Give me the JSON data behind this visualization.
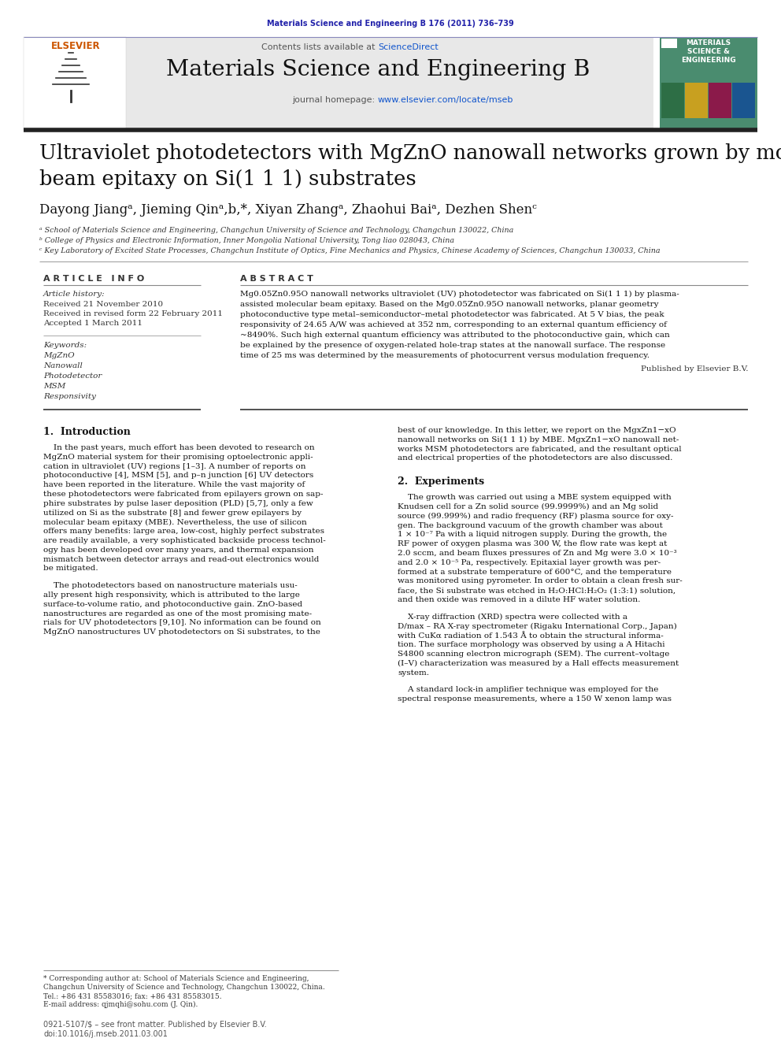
{
  "journal_ref": "Materials Science and Engineering B 176 (2011) 736–739",
  "journal_name": "Materials Science and Engineering B",
  "paper_title_line1": "Ultraviolet photodetectors with MgZnO nanowall networks grown by molecular",
  "paper_title_line2": "beam epitaxy on Si(1 1 1) substrates",
  "authors_text": "Dayong Jiangᵃ, Jieming Qinᵃ,b,*, Xiyan Zhangᵃ, Zhaohui Baiᵃ, Dezhen Shenᶜ",
  "affil_a": "ᵃ School of Materials Science and Engineering, Changchun University of Science and Technology, Changchun 130022, China",
  "affil_b": "ᵇ College of Physics and Electronic Information, Inner Mongolia National University, Tong liao 028043, China",
  "affil_c": "ᶜ Key Laboratory of Excited State Processes, Changchun Institute of Optics, Fine Mechanics and Physics, Chinese Academy of Sciences, Changchun 130033, China",
  "article_info_title": "A R T I C L E   I N F O",
  "abstract_title": "A B S T R A C T",
  "article_history_label": "Article history:",
  "received1": "Received 21 November 2010",
  "received2": "Received in revised form 22 February 2011",
  "accepted": "Accepted 1 March 2011",
  "keywords_label": "Keywords:",
  "keywords": [
    "MgZnO",
    "Nanowall",
    "Photodetector",
    "MSM",
    "Responsivity"
  ],
  "abstract_text1": "Mg0.05Zn0.95O nanowall networks ultraviolet (UV) photodetector was fabricated on Si(1 1 1) by plasma-",
  "abstract_text2": "assisted molecular beam epitaxy. Based on the Mg0.05Zn0.95O nanowall networks, planar geometry",
  "abstract_text3": "photoconductive type metal–semiconductor–metal photodetector was fabricated. At 5 V bias, the peak",
  "abstract_text4": "responsivity of 24.65 A/W was achieved at 352 nm, corresponding to an external quantum efficiency of",
  "abstract_text5": "~8490%. Such high external quantum efficiency was attributed to the photoconductive gain, which can",
  "abstract_text6": "be explained by the presence of oxygen-related hole-trap states at the nanowall surface. The response",
  "abstract_text7": "time of 25 ms was determined by the measurements of photocurrent versus modulation frequency.",
  "published_by": "Published by Elsevier B.V.",
  "section1_title": "1.  Introduction",
  "intro_p1_lines": [
    "    In the past years, much effort has been devoted to research on",
    "MgZnO material system for their promising optoelectronic appli-",
    "cation in ultraviolet (UV) regions [1–3]. A number of reports on",
    "photoconductive [4], MSM [5], and p–n junction [6] UV detectors",
    "have been reported in the literature. While the vast majority of",
    "these photodetectors were fabricated from epilayers grown on sap-",
    "phire substrates by pulse laser deposition (PLD) [5,7], only a few",
    "utilized on Si as the substrate [8] and fewer grew epilayers by",
    "molecular beam epitaxy (MBE). Nevertheless, the use of silicon",
    "offers many benefits: large area, low-cost, highly perfect substrates",
    "are readily available, a very sophisticated backside process technol-",
    "ogy has been developed over many years, and thermal expansion",
    "mismatch between detector arrays and read-out electronics would",
    "be mitigated."
  ],
  "intro_p2_lines": [
    "    The photodetectors based on nanostructure materials usu-",
    "ally present high responsivity, which is attributed to the large",
    "surface-to-volume ratio, and photoconductive gain. ZnO-based",
    "nanostructures are regarded as one of the most promising mate-",
    "rials for UV photodetectors [9,10]. No information can be found on",
    "MgZnO nanostructures UV photodetectors on Si substrates, to the"
  ],
  "right_intro_lines": [
    "best of our knowledge. In this letter, we report on the MgxZn1−xO",
    "nanowall networks on Si(1 1 1) by MBE. MgxZn1−xO nanowall net-",
    "works MSM photodetectors are fabricated, and the resultant optical",
    "and electrical properties of the photodetectors are also discussed."
  ],
  "section2_title": "2.  Experiments",
  "exp_p1_lines": [
    "    The growth was carried out using a MBE system equipped with",
    "Knudsen cell for a Zn solid source (99.9999%) and an Mg solid",
    "source (99.999%) and radio frequency (RF) plasma source for oxy-",
    "gen. The background vacuum of the growth chamber was about",
    "1 × 10⁻⁷ Pa with a liquid nitrogen supply. During the growth, the",
    "RF power of oxygen plasma was 300 W, the flow rate was kept at",
    "2.0 sccm, and beam fluxes pressures of Zn and Mg were 3.0 × 10⁻³",
    "and 2.0 × 10⁻⁵ Pa, respectively. Epitaxial layer growth was per-",
    "formed at a substrate temperature of 600°C, and the temperature",
    "was monitored using pyrometer. In order to obtain a clean fresh sur-",
    "face, the Si substrate was etched in H₂O:HCl:H₂O₂ (1:3:1) solution,",
    "and then oxide was removed in a dilute HF water solution."
  ],
  "exp_p2_lines": [
    "    X-ray diffraction (XRD) spectra were collected with a",
    "D/max – RA X-ray spectrometer (Rigaku International Corp., Japan)",
    "with CuKα radiation of 1.543 Å to obtain the structural informa-",
    "tion. The surface morphology was observed by using a A Hitachi",
    "S4800 scanning electron micrograph (SEM). The current–voltage",
    "(I–V) characterization was measured by a Hall effects measurement",
    "system."
  ],
  "exp_p3_lines": [
    "    A standard lock-in amplifier technique was employed for the",
    "spectral response measurements, where a 150 W xenon lamp was"
  ],
  "footnote_lines": [
    "* Corresponding author at: School of Materials Science and Engineering,",
    "Changchun University of Science and Technology, Changchun 130022, China.",
    "Tel.: +86 431 85583016; fax: +86 431 85583015.",
    "E-mail address: qjmqhi@sohu.com (J. Qin)."
  ],
  "footer1": "0921-5107/$ – see front matter. Published by Elsevier B.V.",
  "footer2": "doi:10.1016/j.mseb.2011.03.001",
  "color_journal_ref": "#2222aa",
  "color_blue": "#1155cc",
  "color_orange": "#cc5500",
  "color_brown": "#5d4037",
  "color_gray_bg": "#e8e8e8",
  "color_cover_green": "#4a8c6f",
  "color_cover_text": "#006666"
}
